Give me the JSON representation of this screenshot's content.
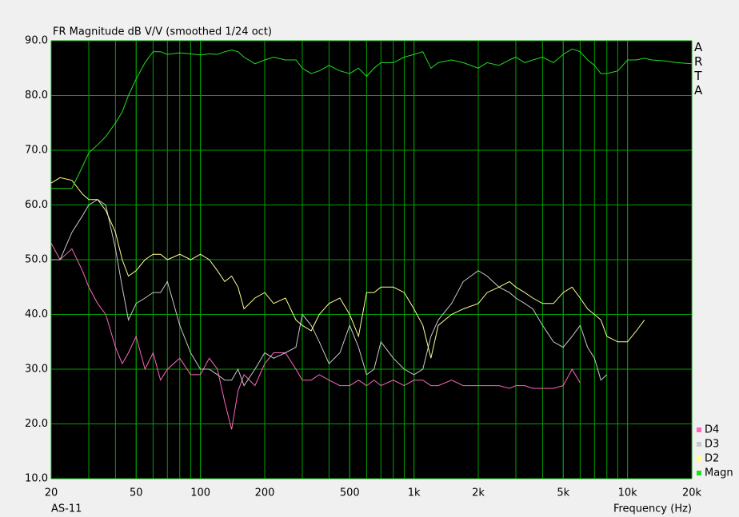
{
  "chart_data": {
    "type": "line",
    "title": "FR Magnitude dB V/V (smoothed 1/24 oct)",
    "xlabel": "Frequency (Hz)",
    "annotation": "AS-11",
    "watermark": "ARTA",
    "xscale": "log",
    "grid": true,
    "minor_grid": true,
    "legend": "bottom-right",
    "xlim": [
      20,
      20000
    ],
    "ylim": [
      10,
      90
    ],
    "xticks": [
      20,
      50,
      100,
      200,
      500,
      {
        "value": 1000,
        "label": "1k"
      },
      {
        "value": 2000,
        "label": "2k"
      },
      {
        "value": 5000,
        "label": "5k"
      },
      {
        "value": 10000,
        "label": "10k"
      },
      {
        "value": 20000,
        "label": "20k"
      }
    ],
    "yticks": [
      {
        "value": 10,
        "label": "10.0"
      },
      {
        "value": 20,
        "label": "20.0"
      },
      {
        "value": 30,
        "label": "30.0"
      },
      {
        "value": 40,
        "label": "40.0"
      },
      {
        "value": 50,
        "label": "50.0"
      },
      {
        "value": 60,
        "label": "60.0"
      },
      {
        "value": 70,
        "label": "70.0"
      },
      {
        "value": 80,
        "label": "80.0"
      },
      {
        "value": 90,
        "label": "90.0"
      }
    ],
    "x": [
      20,
      22,
      25,
      28,
      30,
      33,
      36,
      40,
      43,
      46,
      50,
      55,
      60,
      65,
      70,
      80,
      90,
      100,
      110,
      120,
      130,
      140,
      150,
      160,
      180,
      200,
      220,
      250,
      280,
      300,
      330,
      360,
      400,
      450,
      500,
      550,
      600,
      650,
      700,
      800,
      900,
      1000,
      1100,
      1200,
      1300,
      1500,
      1700,
      2000,
      2200,
      2500,
      2800,
      3000,
      3300,
      3600,
      4000,
      4500,
      5000,
      5500,
      6000,
      6500,
      7000,
      7500,
      8000,
      9000,
      10000,
      11000,
      12000,
      13000,
      15000,
      17000,
      20000
    ],
    "series": [
      {
        "name": "D4",
        "color": "#ff66c0",
        "values": [
          53,
          50,
          52,
          48,
          45,
          42,
          40,
          34,
          31,
          33,
          36,
          30,
          33,
          28,
          30,
          32,
          29,
          29,
          32,
          30,
          24,
          19,
          26,
          29,
          27,
          31,
          33,
          33,
          30,
          28,
          28,
          29,
          28,
          27,
          27,
          28,
          27,
          28,
          27,
          28,
          27,
          28,
          28,
          27,
          27,
          28,
          27,
          27,
          27,
          27,
          26.5,
          27,
          27,
          26.5,
          26.5,
          26.5,
          27,
          30,
          27.5,
          null,
          null,
          null,
          null,
          null,
          null,
          null,
          null,
          null,
          null,
          null,
          null
        ]
      },
      {
        "name": "D3",
        "color": "#c8c8c8",
        "values": [
          50,
          50,
          55,
          58,
          60,
          61,
          60,
          52,
          45,
          39,
          42,
          43,
          44,
          44,
          46,
          38,
          33,
          30,
          30,
          29,
          28,
          28,
          30,
          27,
          30,
          33,
          32,
          33,
          34,
          40,
          38,
          35,
          31,
          33,
          38,
          34,
          29,
          30,
          35,
          32,
          30,
          29,
          30,
          36,
          39,
          42,
          46,
          48,
          47,
          45,
          44,
          43,
          42,
          41,
          38,
          35,
          34,
          36,
          38,
          34,
          32,
          28,
          29,
          null,
          null,
          null,
          null,
          null,
          null,
          null,
          null
        ]
      },
      {
        "name": "D2",
        "color": "#ffff90",
        "values": [
          64,
          65,
          64.5,
          62,
          61,
          61,
          59,
          55,
          50,
          47,
          48,
          50,
          51,
          51,
          50,
          51,
          50,
          51,
          50,
          48,
          46,
          47,
          45,
          41,
          43,
          44,
          42,
          43,
          39,
          38,
          37,
          40,
          42,
          43,
          40,
          36,
          44,
          44,
          45,
          45,
          44,
          41,
          38,
          32,
          38,
          40,
          41,
          42,
          44,
          45,
          46,
          45,
          44,
          43,
          42,
          42,
          44,
          45,
          43,
          41,
          40,
          39,
          36,
          35,
          35,
          37,
          39,
          null,
          null,
          null,
          null
        ]
      },
      {
        "name": "Magn",
        "color": "#22dd22",
        "values": [
          63,
          63,
          63,
          67,
          69.5,
          71,
          72.5,
          75,
          77,
          80,
          83,
          86,
          88,
          88,
          87.5,
          87.8,
          87.6,
          87.4,
          87.6,
          87.5,
          88,
          88.3,
          88,
          87,
          85.8,
          86.5,
          87,
          86.5,
          86.5,
          85,
          84,
          84.5,
          85.5,
          84.5,
          84,
          85,
          83.5,
          85,
          86,
          86,
          87,
          87.5,
          88,
          85,
          86,
          86.5,
          86,
          85,
          86,
          85.5,
          86.5,
          87,
          86,
          86.5,
          87,
          86,
          87.5,
          88.5,
          88,
          86.5,
          85.5,
          84,
          84,
          84.5,
          86.5,
          86.5,
          86.8,
          86.5,
          86.3,
          86,
          85.8
        ]
      }
    ]
  }
}
